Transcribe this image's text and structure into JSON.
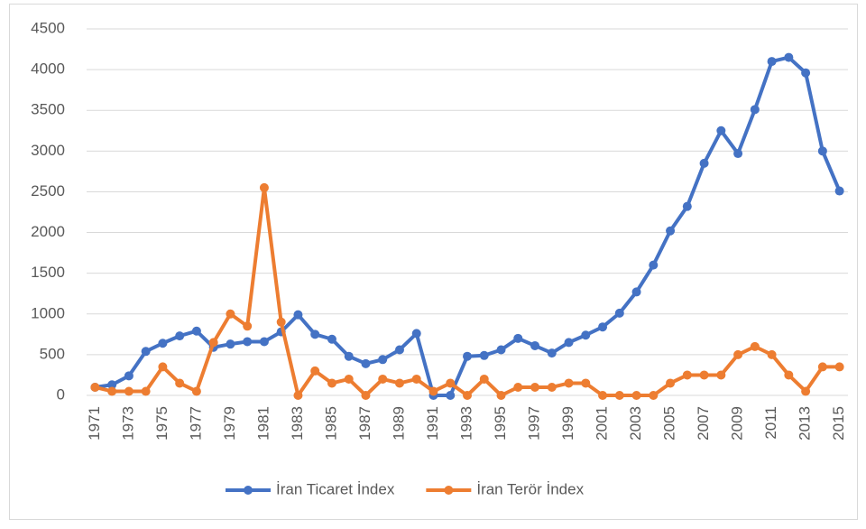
{
  "chart_data": {
    "type": "line",
    "categories": [
      "1971",
      null,
      "1973",
      null,
      "1975",
      null,
      "1977",
      null,
      "1979",
      null,
      "1981",
      null,
      "1983",
      null,
      "1985",
      null,
      "1987",
      null,
      "1989",
      null,
      "1991",
      null,
      "1993",
      null,
      "1995",
      null,
      "1997",
      null,
      "1999",
      null,
      "2001",
      null,
      "2003",
      null,
      "2005",
      null,
      "2007",
      null,
      "2009",
      null,
      "2011",
      null,
      "2013",
      null,
      "2015"
    ],
    "series": [
      {
        "name": "İran Ticaret İndex",
        "color": "#4472c4",
        "values": [
          100,
          130,
          240,
          540,
          640,
          730,
          790,
          590,
          630,
          660,
          660,
          780,
          990,
          750,
          690,
          480,
          390,
          440,
          560,
          760,
          0,
          0,
          480,
          490,
          560,
          700,
          610,
          520,
          650,
          740,
          840,
          1010,
          1270,
          1600,
          2020,
          2320,
          2850,
          3250,
          2970,
          3510,
          4100,
          4150,
          3960,
          3000,
          2510
        ]
      },
      {
        "name": "İran Terör İndex",
        "color": "#ed7d31",
        "values": [
          100,
          50,
          50,
          50,
          350,
          150,
          50,
          650,
          1000,
          850,
          2550,
          900,
          0,
          300,
          150,
          200,
          0,
          200,
          150,
          200,
          50,
          150,
          0,
          200,
          0,
          100,
          100,
          100,
          150,
          150,
          0,
          0,
          0,
          0,
          150,
          250,
          250,
          250,
          500,
          600,
          500,
          250,
          50,
          350,
          350
        ]
      }
    ],
    "ylim": [
      0,
      4500
    ],
    "yticks": [
      0,
      500,
      1000,
      1500,
      2000,
      2500,
      3000,
      3500,
      4000,
      4500
    ],
    "grid": true,
    "legend": "bottom"
  }
}
